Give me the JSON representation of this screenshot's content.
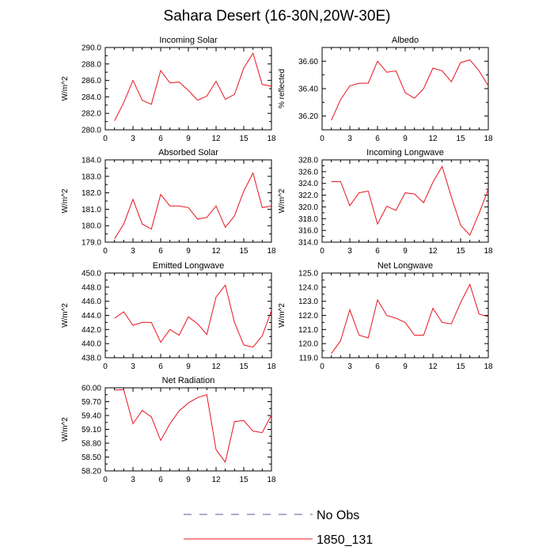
{
  "page": {
    "title": "Sahara Desert (16-30N,20W-30E)"
  },
  "colors": {
    "series_red": "#e8141e",
    "obs_blue": "#5a5aa6"
  },
  "legend": [
    {
      "label": "No Obs",
      "style": "dashed",
      "color": "#5a5aa6"
    },
    {
      "label": "1850_131",
      "style": "solid",
      "color": "#e8141e"
    }
  ],
  "chart_data": [
    {
      "type": "line",
      "title": "Incoming Solar",
      "ylabel": "W/m^2",
      "xlim": [
        0,
        18
      ],
      "ylim": [
        280,
        290
      ],
      "xticks": [
        0,
        3,
        6,
        9,
        12,
        15,
        18
      ],
      "yticks": [
        "280.0",
        "282.0",
        "284.0",
        "286.0",
        "288.0",
        "290.0"
      ],
      "series": [
        {
          "x": [
            1,
            2,
            3,
            4,
            5,
            6,
            7,
            8,
            9,
            10,
            11,
            12,
            13,
            14,
            15,
            16,
            17,
            18
          ],
          "values": [
            281.1,
            283.3,
            286.0,
            283.6,
            283.1,
            287.2,
            285.7,
            285.8,
            284.8,
            283.6,
            284.1,
            285.9,
            283.7,
            284.3,
            287.5,
            289.3,
            285.5,
            285.3
          ]
        }
      ]
    },
    {
      "type": "line",
      "title": "Albedo",
      "ylabel": "% reflected",
      "xlim": [
        0,
        18
      ],
      "ylim": [
        36.1,
        36.7
      ],
      "xticks": [
        0,
        3,
        6,
        9,
        12,
        15,
        18
      ],
      "yticks": [
        "36.20",
        "36.40",
        "36.60"
      ],
      "series": [
        {
          "x": [
            1,
            2,
            3,
            4,
            5,
            6,
            7,
            8,
            9,
            10,
            11,
            12,
            13,
            14,
            15,
            16,
            17,
            18
          ],
          "values": [
            36.17,
            36.32,
            36.42,
            36.44,
            36.44,
            36.6,
            36.52,
            36.53,
            36.37,
            36.33,
            36.4,
            36.55,
            36.53,
            36.45,
            36.59,
            36.61,
            36.53,
            36.42
          ]
        }
      ]
    },
    {
      "type": "line",
      "title": "Absorbed Solar",
      "ylabel": "W/m^2",
      "xlim": [
        0,
        18
      ],
      "ylim": [
        179,
        184
      ],
      "xticks": [
        0,
        3,
        6,
        9,
        12,
        15,
        18
      ],
      "yticks": [
        "179.0",
        "180.0",
        "181.0",
        "182.0",
        "183.0",
        "184.0"
      ],
      "series": [
        {
          "x": [
            1,
            2,
            3,
            4,
            5,
            6,
            7,
            8,
            9,
            10,
            11,
            12,
            13,
            14,
            15,
            16,
            17,
            18
          ],
          "values": [
            179.2,
            180.1,
            181.6,
            180.1,
            179.8,
            181.9,
            181.2,
            181.2,
            181.1,
            180.4,
            180.5,
            181.2,
            179.9,
            180.6,
            182.1,
            183.2,
            181.1,
            181.2
          ]
        }
      ]
    },
    {
      "type": "line",
      "title": "Incoming Longwave",
      "ylabel": "W/m^2",
      "xlim": [
        0,
        18
      ],
      "ylim": [
        314,
        328
      ],
      "xticks": [
        0,
        3,
        6,
        9,
        12,
        15,
        18
      ],
      "yticks": [
        "314.0",
        "316.0",
        "318.0",
        "320.0",
        "322.0",
        "324.0",
        "326.0",
        "328.0"
      ],
      "series": [
        {
          "x": [
            1,
            2,
            3,
            4,
            5,
            6,
            7,
            8,
            9,
            10,
            11,
            12,
            13,
            14,
            15,
            16,
            17,
            18
          ],
          "values": [
            324.3,
            324.3,
            320.2,
            322.4,
            322.7,
            317.1,
            320.1,
            319.4,
            322.4,
            322.2,
            320.7,
            324.2,
            326.9,
            321.7,
            316.9,
            315.2,
            318.9,
            323.0
          ]
        }
      ]
    },
    {
      "type": "line",
      "title": "Emitted Longwave",
      "ylabel": "W/m^2",
      "xlim": [
        0,
        18
      ],
      "ylim": [
        438,
        450
      ],
      "xticks": [
        0,
        3,
        6,
        9,
        12,
        15,
        18
      ],
      "yticks": [
        "438.0",
        "440.0",
        "442.0",
        "444.0",
        "446.0",
        "448.0",
        "450.0"
      ],
      "series": [
        {
          "x": [
            1,
            2,
            3,
            4,
            5,
            6,
            7,
            8,
            9,
            10,
            11,
            12,
            13,
            14,
            15,
            16,
            17,
            18
          ],
          "values": [
            443.6,
            444.5,
            442.6,
            443.0,
            443.0,
            440.2,
            442.0,
            441.2,
            443.8,
            442.8,
            441.3,
            446.6,
            448.3,
            443.0,
            439.8,
            439.5,
            441.1,
            444.7
          ]
        }
      ]
    },
    {
      "type": "line",
      "title": "Net Longwave",
      "ylabel": "W/m^2",
      "xlim": [
        0,
        18
      ],
      "ylim": [
        119,
        125
      ],
      "xticks": [
        0,
        3,
        6,
        9,
        12,
        15,
        18
      ],
      "yticks": [
        "119.0",
        "120.0",
        "121.0",
        "122.0",
        "123.0",
        "124.0",
        "125.0"
      ],
      "series": [
        {
          "x": [
            1,
            2,
            3,
            4,
            5,
            6,
            7,
            8,
            9,
            10,
            11,
            12,
            13,
            14,
            15,
            16,
            17,
            18
          ],
          "values": [
            119.3,
            120.2,
            122.4,
            120.6,
            120.4,
            123.1,
            122.0,
            121.8,
            121.5,
            120.6,
            120.6,
            122.5,
            121.5,
            121.4,
            122.9,
            124.2,
            122.1,
            121.9
          ]
        }
      ]
    },
    {
      "type": "line",
      "title": "Net Radiation",
      "ylabel": "W/m^2",
      "xlim": [
        0,
        18
      ],
      "ylim": [
        58.2,
        60.0
      ],
      "xticks": [
        0,
        3,
        6,
        9,
        12,
        15,
        18
      ],
      "yticks": [
        "58.20",
        "58.50",
        "58.80",
        "59.10",
        "59.40",
        "59.70",
        "60.00"
      ],
      "series": [
        {
          "x": [
            1,
            2,
            3,
            4,
            5,
            6,
            7,
            8,
            9,
            10,
            11,
            12,
            13,
            14,
            15,
            16,
            17,
            18
          ],
          "values": [
            59.95,
            59.96,
            59.22,
            59.51,
            59.37,
            58.86,
            59.22,
            59.5,
            59.67,
            59.79,
            59.85,
            58.66,
            58.39,
            59.27,
            59.29,
            59.06,
            59.03,
            59.41
          ]
        }
      ]
    }
  ]
}
